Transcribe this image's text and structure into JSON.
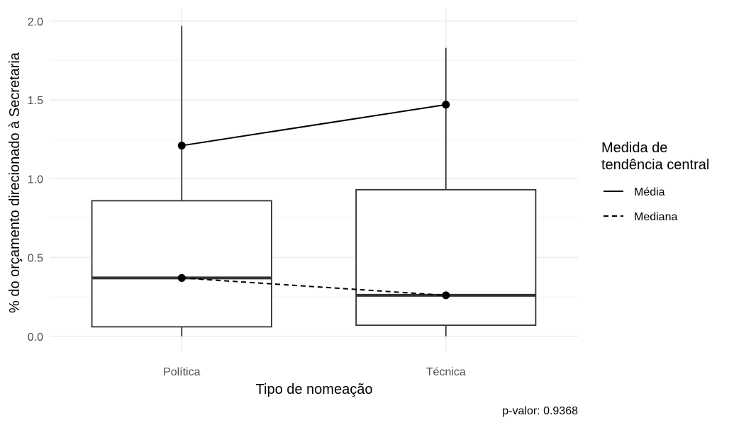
{
  "chart_data": {
    "type": "boxplot",
    "categories": [
      "Política",
      "Técnica"
    ],
    "boxes": [
      {
        "category": "Política",
        "whisker_low": 0.0,
        "q1": 0.06,
        "median": 0.37,
        "q3": 0.86,
        "whisker_high": 1.97
      },
      {
        "category": "Técnica",
        "whisker_low": 0.0,
        "q1": 0.07,
        "median": 0.26,
        "q3": 0.93,
        "whisker_high": 1.83
      }
    ],
    "series": [
      {
        "name": "Média",
        "line_style": "solid",
        "values": [
          1.21,
          1.47
        ]
      },
      {
        "name": "Mediana",
        "line_style": "dashed",
        "values": [
          0.37,
          0.26
        ]
      }
    ],
    "xlabel": "Tipo de nomeação",
    "ylabel": "% do orçamento direcionado à Secretaria",
    "ylim": [
      -0.1,
      2.08
    ],
    "yticks": [
      0.0,
      0.5,
      1.0,
      1.5,
      2.0
    ],
    "ytick_labels": [
      "0.0",
      "0.5",
      "1.0",
      "1.5",
      "2.0"
    ],
    "legend": {
      "title_line1": "Medida de",
      "title_line2": "tendência central",
      "position": "right"
    },
    "caption": "p-valor: 0.9368",
    "grid": true,
    "colors": {
      "box_stroke": "#333333",
      "line": "#000000",
      "grid_major": "#ebebeb",
      "grid_minor": "#f4f4f4"
    }
  }
}
